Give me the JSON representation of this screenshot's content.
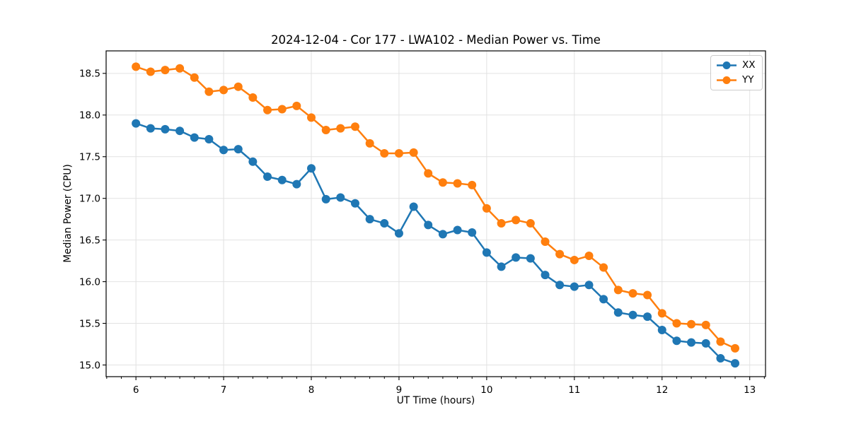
{
  "chart_data": {
    "type": "line",
    "title": "2024-12-04 - Cor 177 - LWA102 - Median Power vs. Time",
    "xlabel": "UT Time (hours)",
    "ylabel": "Median Power (CPU)",
    "xlim": [
      5.66,
      13.18
    ],
    "ylim": [
      14.86,
      18.77
    ],
    "x_ticks": [
      6,
      7,
      8,
      9,
      10,
      11,
      12,
      13
    ],
    "y_ticks": [
      15.0,
      15.5,
      16.0,
      16.5,
      17.0,
      17.5,
      18.0,
      18.5
    ],
    "x_minor_tick_step": 0.16667,
    "grid": true,
    "grid_color": "#e2e2e2",
    "legend_position": "upper right",
    "marker": "o",
    "x": [
      6.0,
      6.167,
      6.333,
      6.5,
      6.667,
      6.833,
      7.0,
      7.167,
      7.333,
      7.5,
      7.667,
      7.833,
      8.0,
      8.167,
      8.333,
      8.5,
      8.667,
      8.833,
      9.0,
      9.167,
      9.333,
      9.5,
      9.667,
      9.833,
      10.0,
      10.167,
      10.333,
      10.5,
      10.667,
      10.833,
      11.0,
      11.167,
      11.333,
      11.5,
      11.667,
      11.833,
      12.0,
      12.167,
      12.333,
      12.5,
      12.667,
      12.833
    ],
    "series": [
      {
        "name": "XX",
        "color": "#1f77b4",
        "values": [
          17.9,
          17.84,
          17.83,
          17.81,
          17.73,
          17.71,
          17.58,
          17.59,
          17.44,
          17.26,
          17.22,
          17.17,
          17.36,
          16.99,
          17.01,
          16.94,
          16.75,
          16.7,
          16.58,
          16.9,
          16.68,
          16.57,
          16.62,
          16.59,
          16.35,
          16.18,
          16.29,
          16.28,
          16.08,
          15.96,
          15.94,
          15.96,
          15.79,
          15.63,
          15.6,
          15.58,
          15.42,
          15.29,
          15.27,
          15.26,
          15.08,
          15.02
        ]
      },
      {
        "name": "YY",
        "color": "#ff7f0e",
        "values": [
          18.58,
          18.52,
          18.54,
          18.56,
          18.45,
          18.28,
          18.3,
          18.34,
          18.21,
          18.06,
          18.07,
          18.11,
          17.97,
          17.82,
          17.84,
          17.86,
          17.66,
          17.54,
          17.54,
          17.55,
          17.3,
          17.19,
          17.18,
          17.16,
          16.88,
          16.7,
          16.74,
          16.7,
          16.48,
          16.33,
          16.26,
          16.31,
          16.17,
          15.9,
          15.86,
          15.84,
          15.62,
          15.5,
          15.49,
          15.48,
          15.28,
          15.2
        ]
      }
    ]
  }
}
